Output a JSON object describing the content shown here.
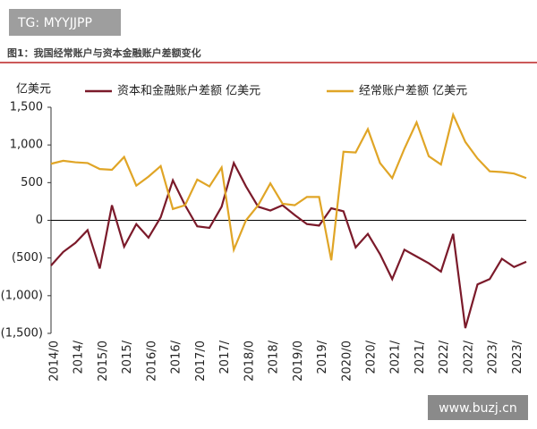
{
  "watermark": "TG: MYYJJPP",
  "site": "www.buzj.cn",
  "chart_data": {
    "type": "line",
    "title": "图1：我国经常账户与资本金融账户差额变化",
    "y_label": "亿美元",
    "categories": [
      "2014/0",
      null,
      "2014/",
      null,
      "2015/0",
      null,
      "2015/",
      null,
      "2016/0",
      null,
      "2016/",
      null,
      "2017/0",
      null,
      "2017/",
      null,
      "2018/0",
      null,
      "2018/",
      null,
      "2019/0",
      null,
      "2019/",
      null,
      "2020/0",
      null,
      "2020/",
      null,
      "2021/",
      null,
      "2021/",
      null,
      "2022/",
      null,
      "2022/",
      null,
      "2023/",
      null,
      "2023/",
      null
    ],
    "series": [
      {
        "name": "资本和金融账户差额 亿美元",
        "color": "#7b1a2a",
        "values": [
          -600,
          -420,
          -300,
          -130,
          -640,
          200,
          -350,
          -50,
          -230,
          40,
          530,
          200,
          -80,
          -100,
          180,
          760,
          450,
          180,
          130,
          200,
          70,
          -50,
          -70,
          160,
          120,
          -360,
          -180,
          -450,
          -780,
          -390,
          -480,
          -570,
          -680,
          -180,
          -1430,
          -850,
          -780,
          -510,
          -620,
          -550
        ]
      },
      {
        "name": "经常账户差额 亿美元",
        "color": "#e0a526",
        "values": [
          750,
          790,
          770,
          760,
          680,
          670,
          840,
          460,
          580,
          720,
          150,
          200,
          540,
          450,
          700,
          -390,
          0,
          200,
          490,
          220,
          200,
          310,
          310,
          -530,
          910,
          900,
          1210,
          760,
          560,
          950,
          1300,
          850,
          740,
          1400,
          1040,
          820,
          650,
          640,
          620,
          560
        ]
      }
    ],
    "ylim": [
      -1500,
      1500
    ],
    "yticks": [
      {
        "value": 1500,
        "label": "1,500"
      },
      {
        "value": 1000,
        "label": "1,000"
      },
      500,
      0,
      {
        "value": -500,
        "label": "(500)"
      },
      {
        "value": -1000,
        "label": "(1,000)"
      },
      {
        "value": -1500,
        "label": "(1,500)"
      }
    ]
  }
}
